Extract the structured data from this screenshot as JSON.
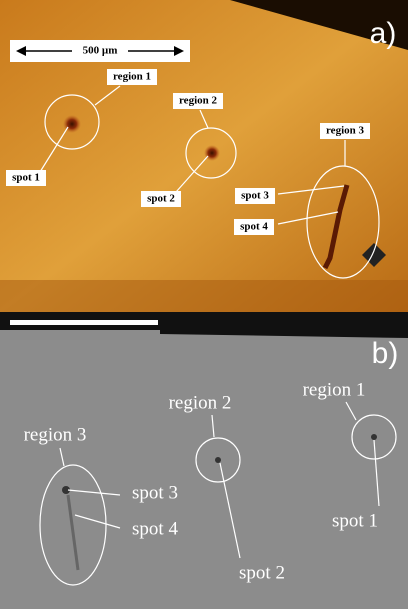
{
  "panels": [
    {
      "label": "a)",
      "scale_bar": "500 µm",
      "regions": [
        "region 1",
        "region 2",
        "region 3"
      ],
      "spots": [
        "spot 1",
        "spot 2",
        "spot 3",
        "spot 4"
      ]
    },
    {
      "label": "b)",
      "regions": [
        "region 1",
        "region 2",
        "region 3"
      ],
      "spots": [
        "spot 1",
        "spot 2",
        "spot 3",
        "spot 4"
      ]
    }
  ]
}
